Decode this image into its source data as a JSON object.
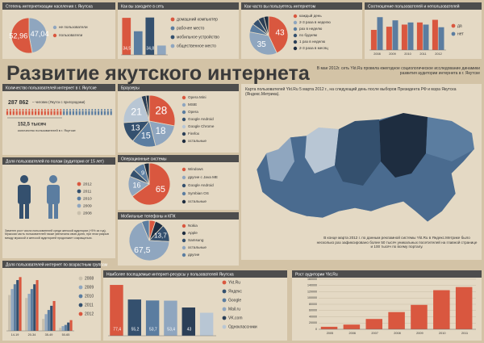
{
  "header": {
    "title": "Развитие якутского интернета",
    "intro": "В мае 2012г. сеть Ykt.Ru провела ежегодное социологическое исследование динамики развития аудитории интернета в г. Якутске"
  },
  "users": {
    "title": "Количество пользователей интернет в г. Якутске",
    "total": "287 862",
    "total_note": "– человек (Якутск с пригородами)",
    "users": "152,5 тысяч",
    "users_note": "количество пользователей в г. Якутске"
  },
  "gender": {
    "title": "Доля пользователей по полам (аудитория от 15 лет)",
    "years": [
      "2012",
      "2011",
      "2010",
      "2009",
      "2008"
    ],
    "note": "Заметен рост числа пользователей среди женской аудитории (+5% за год). Мужская часть пользователей также увеличила свою долю, при этом разрыв между мужской и женской аудиторией продолжает сокращаться."
  },
  "map": {
    "caption": "Карта пользователей Ykt.Ru 5 марта 2012 г., на следующий день после выборов Президента РФ и мэра Якутска (Яндекс.Метрика).",
    "note": "В конце марта 2012 г. по данным рекламной системы Ykt.Ru в Яндекс.Метрике было несколько раз зафиксировано более 50 тысяч уникальных посетителей на главной странице и 100 тысяч по всему порталу."
  },
  "chart_data": [
    {
      "type": "pie",
      "title": "Степень интернетизации населения г. Якутска",
      "categories": [
        "не пользователи",
        "пользователи"
      ],
      "values": [
        47.04,
        52.96
      ],
      "value_labels": [
        "47,04",
        "52,96"
      ],
      "colors": [
        "#8fa6bf",
        "#d9573f"
      ]
    },
    {
      "type": "bar",
      "title": "Как вы заходите в сеть",
      "categories": [
        "домашний компьютер",
        "рабочее место",
        "мобильное устройство",
        "общественное место"
      ],
      "values": [
        34.5,
        22,
        34.8,
        8.7
      ],
      "value_labels": [
        "34,5",
        null,
        "34,8",
        null
      ],
      "colors": [
        "#d9573f",
        "#5b7da0",
        "#34506e",
        "#8fa6bf"
      ]
    },
    {
      "type": "pie",
      "title": "Как часто вы пользуетесь интернетом",
      "categories": [
        "каждый день",
        "2-3 раза в неделю",
        "раз в неделю",
        "по будням",
        "1 раз в неделю",
        "2-3 раза в месяц"
      ],
      "values": [
        43,
        35,
        7,
        6,
        5,
        4
      ],
      "colors": [
        "#d9573f",
        "#8fa6bf",
        "#5b7da0",
        "#34506e",
        "#2b3f57",
        "#1e2d40"
      ]
    },
    {
      "type": "bar",
      "title": "Соотношение пользователей и непользователей",
      "categories": [
        "2008",
        "2009",
        "2010",
        "2011",
        "2012"
      ],
      "series": [
        {
          "name": "да",
          "color": "#d9573f",
          "values": [
            38,
            44,
            48,
            52,
            57
          ]
        },
        {
          "name": "нет",
          "color": "#5b7da0",
          "values": [
            62,
            56,
            52,
            48,
            43
          ]
        }
      ]
    },
    {
      "type": "pie",
      "title": "Браузеры",
      "categories": [
        "Opera Mini",
        "MSIE",
        "Opera",
        "Google Android",
        "Google Chrome",
        "Firefox",
        "остальные"
      ],
      "values": [
        28,
        18,
        15,
        13,
        21,
        3,
        2
      ],
      "colors": [
        "#d9573f",
        "#8fa6bf",
        "#5b7da0",
        "#34506e",
        "#b8c6d4",
        "#2b3f57",
        "#1e2d40"
      ]
    },
    {
      "type": "pie",
      "title": "Операционные системы",
      "categories": [
        "Windows",
        "другие с Java ME",
        "Google Android",
        "Symbian OS",
        "остальные"
      ],
      "values": [
        65,
        16,
        6,
        9,
        4
      ],
      "colors": [
        "#d9573f",
        "#8fa6bf",
        "#34506e",
        "#5b7da0",
        "#1e2d40"
      ]
    },
    {
      "type": "pie",
      "title": "Мобильные телефоны и КПК",
      "categories": [
        "Nokia",
        "Apple",
        "Samsung",
        "остальные",
        "другие"
      ],
      "values": [
        5,
        7,
        13.7,
        67.5,
        6.1
      ],
      "value_labels": [
        null,
        null,
        "13,7",
        "67,5",
        null
      ],
      "colors": [
        "#d9573f",
        "#1e2d40",
        "#34506e",
        "#8fa6bf",
        "#5b7da0"
      ]
    },
    {
      "type": "bar",
      "title": "Доля пользователей интернет по возрастным группам",
      "categories": [
        "14-19",
        "20-34",
        "35-49",
        "50-65"
      ],
      "series": [
        {
          "name": "2008",
          "color": "#c9c0ad",
          "values": [
            60,
            55,
            20,
            5
          ]
        },
        {
          "name": "2009",
          "color": "#8fa6bf",
          "values": [
            70,
            62,
            28,
            8
          ]
        },
        {
          "name": "2010",
          "color": "#5b7da0",
          "values": [
            78,
            70,
            35,
            10
          ]
        },
        {
          "name": "2011",
          "color": "#34506e",
          "values": [
            85,
            78,
            42,
            14
          ]
        },
        {
          "name": "2012",
          "color": "#d9573f",
          "values": [
            90,
            85,
            50,
            18
          ]
        }
      ]
    },
    {
      "type": "bar",
      "title": "Наиболее посещаемые интернет-ресурсы у пользователей Якутска",
      "categories": [
        "Ykt.Ru",
        "Яндекс",
        "Google",
        "Mail.ru",
        "VK.com",
        "Одноклассники"
      ],
      "values": [
        77.4,
        55.2,
        53.7,
        53.4,
        43,
        35
      ],
      "value_labels": [
        "77,4",
        "55,2",
        "53,7",
        "53,4",
        "43",
        null
      ],
      "colors": [
        "#d9573f",
        "#34506e",
        "#5b7da0",
        "#8fa6bf",
        "#2b3f57",
        "#b8c6d4"
      ]
    },
    {
      "type": "bar",
      "title": "Рост аудитории Ykt.Ru",
      "categories": [
        "2005",
        "2006",
        "2007",
        "2008",
        "2009",
        "2010",
        "2011"
      ],
      "values": [
        8000,
        15000,
        33000,
        55000,
        78000,
        125000,
        135000
      ],
      "color": "#d9573f",
      "ylim": [
        0,
        160000
      ],
      "yticks": [
        0,
        20000,
        40000,
        60000,
        80000,
        100000,
        120000,
        140000,
        160000
      ],
      "grid": true
    }
  ]
}
